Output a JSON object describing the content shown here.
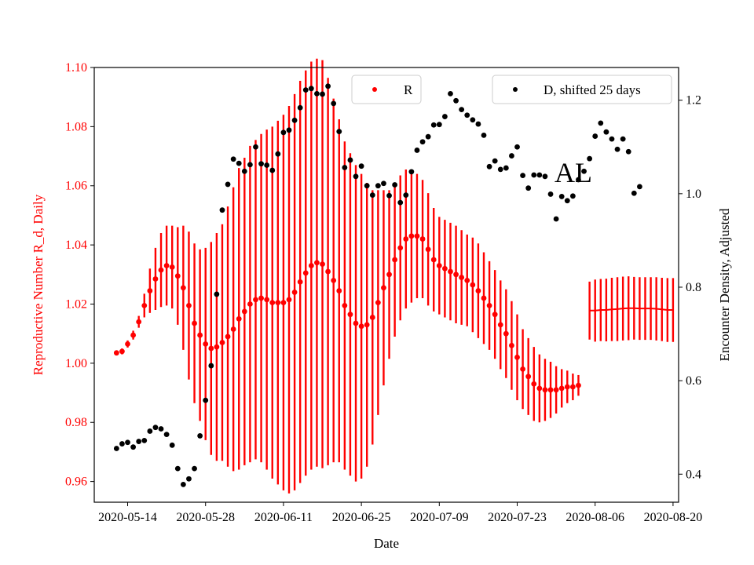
{
  "chart_data": {
    "type": "scatter",
    "xlabel": "Date",
    "ylabel_left": "Reproductive Number R_d, Daily",
    "ylabel_right": "Encounter Density, Adjusted",
    "annotation": "AL",
    "left_axis_color": "#ff0000",
    "right_axis_color": "#000000",
    "xlim": [
      "2020-05-08",
      "2020-08-21"
    ],
    "ylim_left": [
      0.953,
      1.1
    ],
    "ylim_right": [
      0.34,
      1.27
    ],
    "x_ticks": [
      "2020-05-14",
      "2020-05-28",
      "2020-06-11",
      "2020-06-25",
      "2020-07-09",
      "2020-07-23",
      "2020-08-06",
      "2020-08-20"
    ],
    "y_ticks_left": [
      "0.96",
      "0.98",
      "1.00",
      "1.02",
      "1.04",
      "1.06",
      "1.08",
      "1.10"
    ],
    "y_ticks_right": [
      "0.4",
      "0.6",
      "0.8",
      "1.0",
      "1.2"
    ],
    "legends": [
      {
        "label": "R",
        "color": "#ff0000",
        "position": "upper-center"
      },
      {
        "label": "D, shifted 25 days",
        "color": "#000000",
        "position": "upper-right"
      }
    ],
    "series": [
      {
        "name": "R",
        "axis": "left",
        "color": "#ff0000",
        "markers": true,
        "start_date": "2020-05-12",
        "values": [
          1.0035,
          1.004,
          1.0065,
          1.0095,
          1.014,
          1.0195,
          1.0245,
          1.0285,
          1.0315,
          1.033,
          1.0325,
          1.0295,
          1.0255,
          1.0195,
          1.0135,
          1.0095,
          1.0065,
          1.005,
          1.0055,
          1.007,
          1.009,
          1.0115,
          1.015,
          1.0175,
          1.02,
          1.0215,
          1.022,
          1.0215,
          1.0205,
          1.0205,
          1.0205,
          1.0215,
          1.024,
          1.0275,
          1.0305,
          1.033,
          1.034,
          1.0335,
          1.031,
          1.028,
          1.0245,
          1.0195,
          1.0165,
          1.0135,
          1.0125,
          1.013,
          1.0155,
          1.0205,
          1.0255,
          1.03,
          1.035,
          1.039,
          1.042,
          1.043,
          1.043,
          1.042,
          1.0385,
          1.035,
          1.033,
          1.032,
          1.031,
          1.03,
          1.029,
          1.028,
          1.0265,
          1.0245,
          1.022,
          1.0195,
          1.0165,
          1.013,
          1.01,
          1.006,
          1.002,
          0.998,
          0.9955,
          0.993,
          0.9915,
          0.991,
          0.991,
          0.991,
          0.9915,
          0.992,
          0.992,
          0.9925
        ],
        "err_half": [
          0.0008,
          0.001,
          0.0012,
          0.0015,
          0.002,
          0.004,
          0.0075,
          0.0105,
          0.0125,
          0.0135,
          0.014,
          0.0165,
          0.021,
          0.025,
          0.027,
          0.029,
          0.0325,
          0.036,
          0.0385,
          0.04,
          0.044,
          0.048,
          0.051,
          0.052,
          0.0535,
          0.054,
          0.0555,
          0.0575,
          0.0595,
          0.0615,
          0.0635,
          0.0655,
          0.067,
          0.068,
          0.0685,
          0.069,
          0.069,
          0.069,
          0.0655,
          0.0615,
          0.058,
          0.0555,
          0.0545,
          0.0535,
          0.0515,
          0.048,
          0.043,
          0.038,
          0.033,
          0.0285,
          0.026,
          0.0245,
          0.0235,
          0.0225,
          0.021,
          0.02,
          0.019,
          0.0175,
          0.0165,
          0.0165,
          0.0165,
          0.0165,
          0.016,
          0.0155,
          0.016,
          0.016,
          0.0155,
          0.015,
          0.015,
          0.015,
          0.015,
          0.015,
          0.0145,
          0.0135,
          0.013,
          0.0125,
          0.0115,
          0.0105,
          0.0095,
          0.008,
          0.0065,
          0.0055,
          0.0045,
          0.0035
        ]
      },
      {
        "name": "R (projection)",
        "axis": "left",
        "color": "#ff0000",
        "markers": false,
        "start_date": "2020-08-05",
        "values": [
          1.0178,
          1.0178,
          1.018,
          1.018,
          1.0182,
          1.0183,
          1.0185,
          1.0186,
          1.0186,
          1.0185,
          1.0185,
          1.0185,
          1.0184,
          1.0182,
          1.018,
          1.018
        ],
        "err_half": [
          0.0098,
          0.0105,
          0.0105,
          0.0106,
          0.0107,
          0.0108,
          0.0108,
          0.0108,
          0.0106,
          0.0106,
          0.0106,
          0.0106,
          0.0107,
          0.0107,
          0.0108,
          0.0108
        ]
      },
      {
        "name": "D, shifted 25 days",
        "axis": "right",
        "color": "#000000",
        "points": [
          [
            "2020-05-12",
            0.455
          ],
          [
            "2020-05-13",
            0.465
          ],
          [
            "2020-05-14",
            0.468
          ],
          [
            "2020-05-15",
            0.458
          ],
          [
            "2020-05-16",
            0.47
          ],
          [
            "2020-05-17",
            0.472
          ],
          [
            "2020-05-18",
            0.492
          ],
          [
            "2020-05-19",
            0.5
          ],
          [
            "2020-05-20",
            0.497
          ],
          [
            "2020-05-21",
            0.485
          ],
          [
            "2020-05-22",
            0.462
          ],
          [
            "2020-05-23",
            0.412
          ],
          [
            "2020-05-24",
            0.378
          ],
          [
            "2020-05-25",
            0.39
          ],
          [
            "2020-05-26",
            0.412
          ],
          [
            "2020-05-27",
            0.482
          ],
          [
            "2020-05-28",
            0.558
          ],
          [
            "2020-05-29",
            0.632
          ],
          [
            "2020-05-30",
            0.785
          ],
          [
            "2020-05-31",
            0.965
          ],
          [
            "2020-06-01",
            1.02
          ],
          [
            "2020-06-02",
            1.074
          ],
          [
            "2020-06-03",
            1.065
          ],
          [
            "2020-06-04",
            1.048
          ],
          [
            "2020-06-05",
            1.062
          ],
          [
            "2020-06-06",
            1.1
          ],
          [
            "2020-06-07",
            1.064
          ],
          [
            "2020-06-08",
            1.061
          ],
          [
            "2020-06-09",
            1.05
          ],
          [
            "2020-06-10",
            1.085
          ],
          [
            "2020-06-11",
            1.131
          ],
          [
            "2020-06-12",
            1.136
          ],
          [
            "2020-06-13",
            1.157
          ],
          [
            "2020-06-14",
            1.184
          ],
          [
            "2020-06-15",
            1.222
          ],
          [
            "2020-06-16",
            1.225
          ],
          [
            "2020-06-17",
            1.214
          ],
          [
            "2020-06-18",
            1.213
          ],
          [
            "2020-06-19",
            1.23
          ],
          [
            "2020-06-20",
            1.193
          ],
          [
            "2020-06-21",
            1.133
          ],
          [
            "2020-06-22",
            1.056
          ],
          [
            "2020-06-23",
            1.072
          ],
          [
            "2020-06-24",
            1.037
          ],
          [
            "2020-06-25",
            1.059
          ],
          [
            "2020-06-26",
            1.017
          ],
          [
            "2020-06-27",
            0.997
          ],
          [
            "2020-06-28",
            1.017
          ],
          [
            "2020-06-29",
            1.022
          ],
          [
            "2020-06-30",
            0.996
          ],
          [
            "2020-07-01",
            1.019
          ],
          [
            "2020-07-02",
            0.981
          ],
          [
            "2020-07-03",
            0.997
          ],
          [
            "2020-07-04",
            1.047
          ],
          [
            "2020-07-05",
            1.093
          ],
          [
            "2020-07-06",
            1.111
          ],
          [
            "2020-07-07",
            1.122
          ],
          [
            "2020-07-08",
            1.147
          ],
          [
            "2020-07-09",
            1.148
          ],
          [
            "2020-07-10",
            1.165
          ],
          [
            "2020-07-11",
            1.214
          ],
          [
            "2020-07-12",
            1.199
          ],
          [
            "2020-07-13",
            1.18
          ],
          [
            "2020-07-14",
            1.168
          ],
          [
            "2020-07-15",
            1.158
          ],
          [
            "2020-07-16",
            1.149
          ],
          [
            "2020-07-17",
            1.125
          ],
          [
            "2020-07-18",
            1.058
          ],
          [
            "2020-07-19",
            1.07
          ],
          [
            "2020-07-20",
            1.052
          ],
          [
            "2020-07-21",
            1.055
          ],
          [
            "2020-07-22",
            1.081
          ],
          [
            "2020-07-23",
            1.1
          ],
          [
            "2020-07-24",
            1.039
          ],
          [
            "2020-07-25",
            1.012
          ],
          [
            "2020-07-26",
            1.04
          ],
          [
            "2020-07-27",
            1.04
          ],
          [
            "2020-07-28",
            1.037
          ],
          [
            "2020-07-29",
            0.999
          ],
          [
            "2020-07-30",
            0.946
          ],
          [
            "2020-07-31",
            0.994
          ],
          [
            "2020-08-01",
            0.985
          ],
          [
            "2020-08-02",
            0.995
          ],
          [
            "2020-08-03",
            1.03
          ],
          [
            "2020-08-04",
            1.048
          ],
          [
            "2020-08-05",
            1.075
          ],
          [
            "2020-08-06",
            1.123
          ],
          [
            "2020-08-07",
            1.151
          ],
          [
            "2020-08-08",
            1.132
          ],
          [
            "2020-08-09",
            1.117
          ],
          [
            "2020-08-10",
            1.095
          ],
          [
            "2020-08-11",
            1.117
          ],
          [
            "2020-08-12",
            1.09
          ],
          [
            "2020-08-13",
            1.001
          ],
          [
            "2020-08-14",
            1.015
          ]
        ]
      }
    ]
  }
}
